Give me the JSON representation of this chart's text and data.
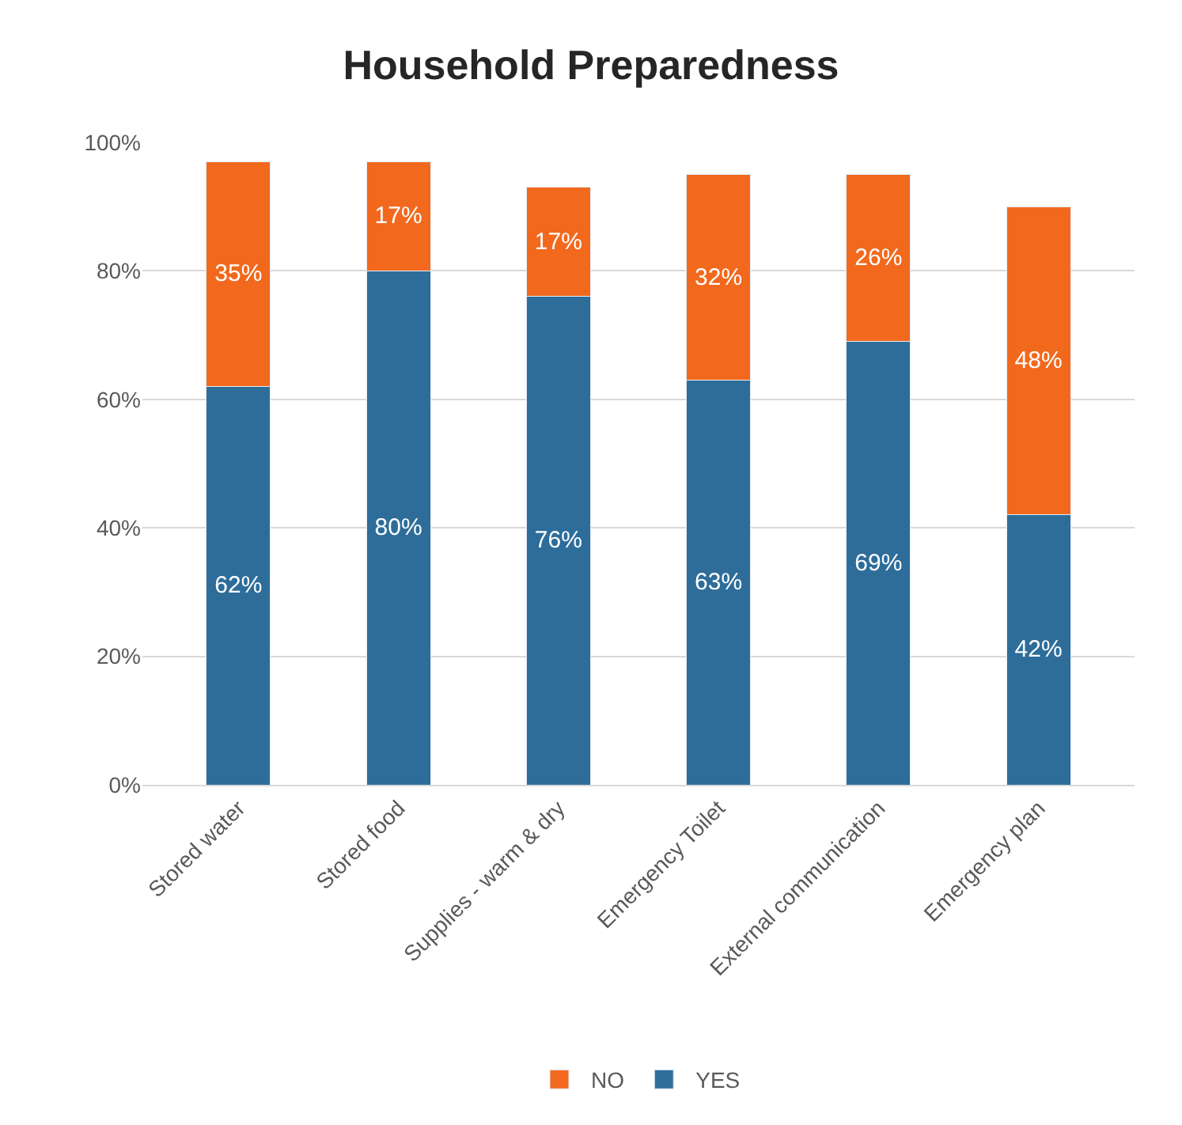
{
  "chart_data": {
    "type": "bar",
    "title": "Household Preparedness",
    "stacked": true,
    "categories": [
      "Stored water",
      "Stored food",
      "Supplies - warm & dry",
      "Emergency Toilet",
      "External communication",
      "Emergency plan"
    ],
    "series": [
      {
        "name": "YES",
        "color": "#2e6d9a",
        "values": [
          62,
          80,
          76,
          63,
          69,
          42
        ],
        "value_labels": [
          "62%",
          "80%",
          "76%",
          "63%",
          "69%",
          "42%"
        ]
      },
      {
        "name": "NO",
        "color": "#f2691e",
        "values": [
          35,
          17,
          17,
          32,
          26,
          48
        ],
        "value_labels": [
          "35%",
          "17%",
          "17%",
          "32%",
          "26%",
          "48%"
        ]
      }
    ],
    "ylim": [
      0,
      100
    ],
    "yticks": [
      {
        "value": 0,
        "label": "0%"
      },
      {
        "value": 20,
        "label": "20%"
      },
      {
        "value": 40,
        "label": "40%"
      },
      {
        "value": 60,
        "label": "60%"
      },
      {
        "value": 80,
        "label": "80%"
      },
      {
        "value": 100,
        "label": "100%"
      }
    ],
    "grid": "y",
    "legend": "bottom"
  }
}
